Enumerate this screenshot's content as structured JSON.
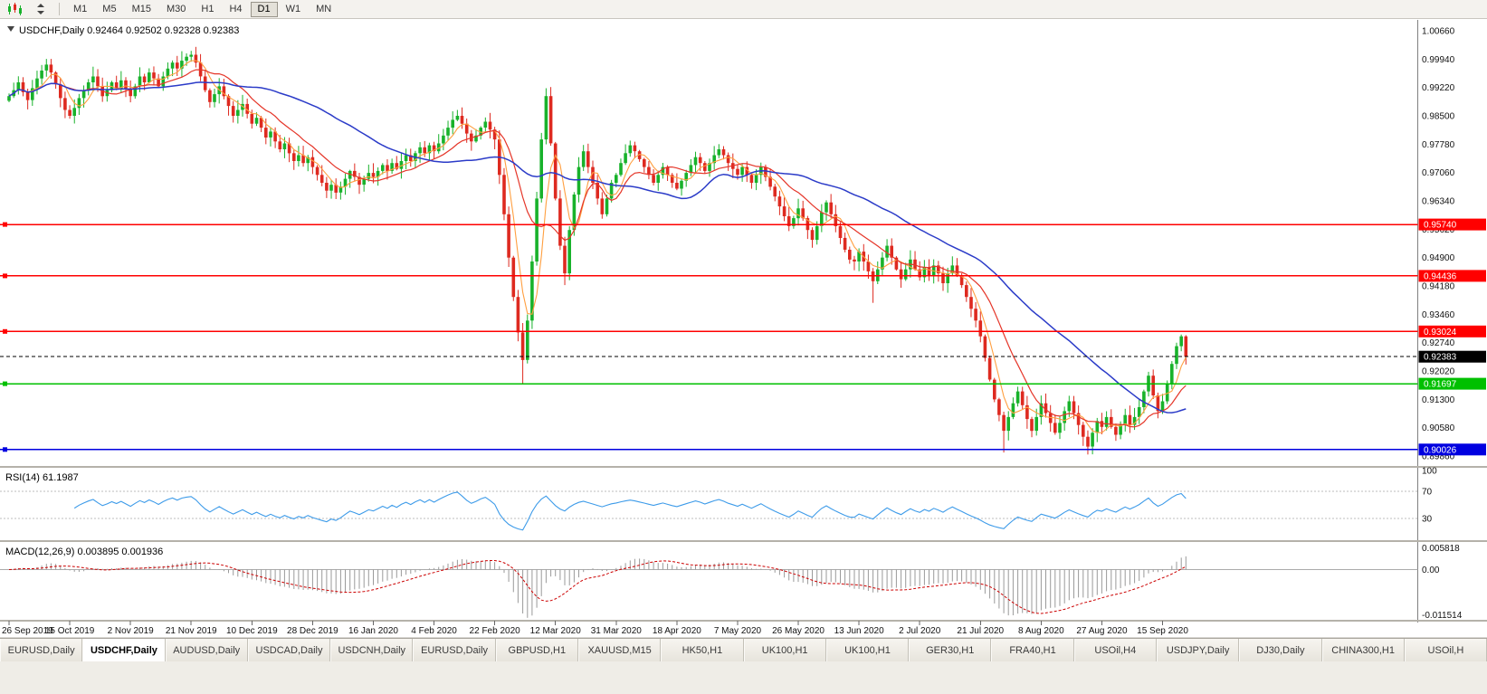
{
  "toolbar": {
    "timeframes": [
      "M1",
      "M5",
      "M15",
      "M30",
      "H1",
      "H4",
      "D1",
      "W1",
      "MN"
    ],
    "active_timeframe": "D1"
  },
  "chart": {
    "title": "USDCHF,Daily",
    "ohlc": {
      "open": "0.92464",
      "high": "0.92502",
      "low": "0.92328",
      "close": "0.92383"
    }
  },
  "chart_data": {
    "type": "candlestick",
    "symbol": "USDCHF",
    "timeframe": "Daily",
    "x_labels": [
      "26 Sep 2019",
      "15 Oct 2019",
      "2 Nov 2019",
      "21 Nov 2019",
      "10 Dec 2019",
      "28 Dec 2019",
      "16 Jan 2020",
      "4 Feb 2020",
      "22 Feb 2020",
      "12 Mar 2020",
      "31 Mar 2020",
      "18 Apr 2020",
      "7 May 2020",
      "26 May 2020",
      "13 Jun 2020",
      "2 Jul 2020",
      "21 Jul 2020",
      "8 Aug 2020",
      "27 Aug 2020",
      "15 Sep 2020"
    ],
    "candles_per_label": 13,
    "closes": [
      0.99,
      0.9915,
      0.9935,
      0.991,
      0.989,
      0.992,
      0.9945,
      0.9965,
      0.998,
      0.996,
      0.993,
      0.9895,
      0.9865,
      0.985,
      0.987,
      0.9895,
      0.9915,
      0.9935,
      0.995,
      0.9925,
      0.99,
      0.9915,
      0.9935,
      0.992,
      0.994,
      0.992,
      0.99,
      0.9925,
      0.995,
      0.9935,
      0.996,
      0.9945,
      0.9925,
      0.995,
      0.997,
      0.9985,
      0.997,
      0.999,
      1.0,
      1.0005,
      0.9985,
      0.995,
      0.9915,
      0.9885,
      0.9905,
      0.9925,
      0.99,
      0.9875,
      0.985,
      0.9865,
      0.988,
      0.9855,
      0.983,
      0.9845,
      0.982,
      0.9795,
      0.981,
      0.9785,
      0.9765,
      0.978,
      0.9755,
      0.9735,
      0.975,
      0.973,
      0.9745,
      0.972,
      0.97,
      0.968,
      0.966,
      0.9675,
      0.9655,
      0.967,
      0.969,
      0.971,
      0.9695,
      0.9675,
      0.969,
      0.9705,
      0.9695,
      0.971,
      0.9725,
      0.971,
      0.973,
      0.9715,
      0.9735,
      0.975,
      0.9735,
      0.9755,
      0.977,
      0.9755,
      0.9775,
      0.976,
      0.978,
      0.98,
      0.982,
      0.984,
      0.985,
      0.983,
      0.9805,
      0.9785,
      0.98,
      0.982,
      0.9835,
      0.9815,
      0.979,
      0.97,
      0.96,
      0.949,
      0.939,
      0.93,
      0.923,
      0.933,
      0.948,
      0.964,
      0.979,
      0.99,
      0.978,
      0.964,
      0.952,
      0.945,
      0.956,
      0.965,
      0.972,
      0.976,
      0.972,
      0.968,
      0.964,
      0.96,
      0.964,
      0.968,
      0.97,
      0.973,
      0.9755,
      0.9775,
      0.976,
      0.974,
      0.972,
      0.97,
      0.968,
      0.97,
      0.972,
      0.97,
      0.968,
      0.9665,
      0.9685,
      0.9705,
      0.9725,
      0.9745,
      0.973,
      0.971,
      0.973,
      0.975,
      0.9765,
      0.975,
      0.973,
      0.9715,
      0.97,
      0.972,
      0.97,
      0.968,
      0.97,
      0.972,
      0.9695,
      0.967,
      0.9645,
      0.962,
      0.9595,
      0.957,
      0.959,
      0.9615,
      0.959,
      0.956,
      0.9535,
      0.957,
      0.9605,
      0.963,
      0.96,
      0.957,
      0.954,
      0.951,
      0.9485,
      0.948,
      0.9505,
      0.948,
      0.9455,
      0.943,
      0.946,
      0.949,
      0.952,
      0.949,
      0.946,
      0.9435,
      0.946,
      0.9485,
      0.946,
      0.944,
      0.9465,
      0.9445,
      0.947,
      0.945,
      0.9425,
      0.945,
      0.947,
      0.9445,
      0.942,
      0.939,
      0.936,
      0.933,
      0.929,
      0.9235,
      0.918,
      0.913,
      0.909,
      0.905,
      0.9085,
      0.912,
      0.915,
      0.9115,
      0.908,
      0.905,
      0.9085,
      0.912,
      0.9095,
      0.907,
      0.9045,
      0.907,
      0.91,
      0.9125,
      0.9095,
      0.9065,
      0.9035,
      0.901,
      0.9045,
      0.9075,
      0.906,
      0.9085,
      0.906,
      0.904,
      0.9065,
      0.909,
      0.9065,
      0.9085,
      0.911,
      0.915,
      0.919,
      0.914,
      0.91,
      0.9125,
      0.917,
      0.922,
      0.9265,
      0.929,
      0.92383
    ],
    "wick_overrides": [
      {
        "i": 39,
        "high": 1.0015
      },
      {
        "i": 96,
        "high": 0.9865
      },
      {
        "i": 110,
        "low": 0.917
      },
      {
        "i": 115,
        "high": 0.992
      },
      {
        "i": 119,
        "low": 0.942
      },
      {
        "i": 185,
        "low": 0.9375
      },
      {
        "i": 213,
        "low": 0.8995
      },
      {
        "i": 231,
        "low": 0.899
      },
      {
        "i": 244,
        "high": 0.92
      },
      {
        "i": 252,
        "high": 0.9293
      }
    ],
    "price_axis": {
      "max": 1.0066,
      "step": 0.0072,
      "labels": [
        "1.00660",
        "0.99940",
        "0.99220",
        "0.98500",
        "0.97780",
        "0.97060",
        "0.96340",
        "0.95620",
        "0.94900",
        "0.94180",
        "0.93460",
        "0.92740",
        "0.92020",
        "0.91300",
        "0.90580",
        "0.89860"
      ]
    },
    "hlines": [
      {
        "price": 0.9574,
        "label": "0.95740",
        "color": "#FF0000"
      },
      {
        "price": 0.94436,
        "label": "0.94436",
        "color": "#FF0000"
      },
      {
        "price": 0.93024,
        "label": "0.93024",
        "color": "#FF0000"
      },
      {
        "price": 0.92383,
        "label": "0.92383",
        "color": "#000000",
        "style": "current"
      },
      {
        "price": 0.91697,
        "label": "0.91697",
        "color": "#00C000"
      },
      {
        "price": 0.90026,
        "label": "0.90026",
        "color": "#0000E0"
      }
    ],
    "moving_averages": [
      {
        "period": 5,
        "color": "#FF9F40",
        "width": 1.1
      },
      {
        "period": 13,
        "color": "#E53528",
        "width": 1.2
      },
      {
        "period": 40,
        "color": "#2B3BC8",
        "width": 1.5
      }
    ],
    "rsi": {
      "label": "RSI(14)",
      "value": "61.1987",
      "period": 14,
      "levels": [
        100,
        70,
        30
      ],
      "color": "#3D9BE9"
    },
    "macd": {
      "label": "MACD(12,26,9)",
      "values": "0.003895 0.001936",
      "fast": 12,
      "slow": 26,
      "signal": 9,
      "axis": {
        "max": 0.005818,
        "max_label": "0.005818",
        "zero_label": "0.00",
        "min": -0.011514,
        "min_label": "-0.011514"
      },
      "hist_color": "#9a9a9a",
      "signal_color": "#CC0000"
    },
    "candle_colors": {
      "up": "#18B22B",
      "down": "#DE2A20"
    }
  },
  "tabs": {
    "items": [
      "EURUSD,Daily",
      "USDCHF,Daily",
      "AUDUSD,Daily",
      "USDCAD,Daily",
      "USDCNH,Daily",
      "EURUSD,Daily",
      "GBPUSD,H1",
      "XAUUSD,M15",
      "HK50,H1",
      "UK100,H1",
      "UK100,H1",
      "GER30,H1",
      "FRA40,H1",
      "USOil,H4",
      "USDJPY,Daily",
      "DJ30,Daily",
      "CHINA300,H1",
      "USOil,H"
    ],
    "active_index": 1
  }
}
